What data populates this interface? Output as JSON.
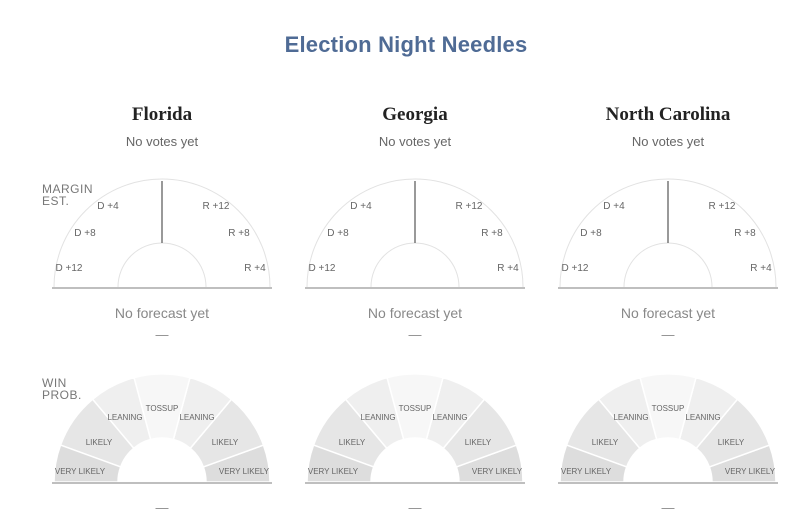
{
  "page": {
    "title": "Election Night Needles"
  },
  "labels": {
    "margin": "MARGIN\nEST.",
    "win": "WIN\nPROB."
  },
  "margin_scale": {
    "left": [
      "D +12",
      "D +8",
      "D +4"
    ],
    "right": [
      "R +4",
      "R +8",
      "R +12"
    ]
  },
  "prob_scale": {
    "tossup": "TOSSUP",
    "leaning": "LEANING",
    "likely": "LIKELY",
    "very_likely": "VERY LIKELY"
  },
  "colors": {
    "title": "#4f6b95",
    "band_outer": "#dddddd",
    "band_mid": "#e6e6e6",
    "band_inner": "#efefef",
    "band_center": "#f7f7f7"
  },
  "states": [
    {
      "name": "Florida",
      "votes_status": "No votes yet",
      "forecast_status": "No forecast yet",
      "forecast_dash": "—",
      "prob_dash": "—"
    },
    {
      "name": "Georgia",
      "votes_status": "No votes yet",
      "forecast_status": "No forecast yet",
      "forecast_dash": "—",
      "prob_dash": "—"
    },
    {
      "name": "North Carolina",
      "votes_status": "No votes yet",
      "forecast_status": "No forecast yet",
      "forecast_dash": "—",
      "prob_dash": "—"
    }
  ]
}
